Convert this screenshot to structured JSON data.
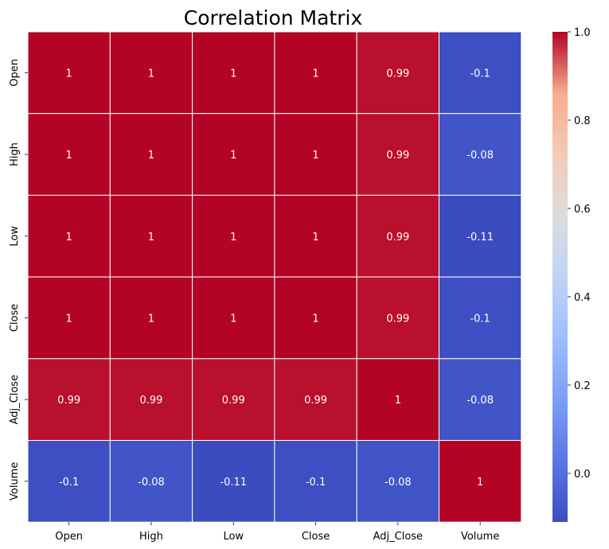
{
  "chart_data": {
    "type": "heatmap",
    "title": "Correlation Matrix",
    "xlabel": "",
    "ylabel": "",
    "x_categories": [
      "Open",
      "High",
      "Low",
      "Close",
      "Adj_Close",
      "Volume"
    ],
    "y_categories": [
      "Open",
      "High",
      "Low",
      "Close",
      "Adj_Close",
      "Volume"
    ],
    "values": [
      [
        1,
        1,
        1,
        1,
        0.99,
        -0.1
      ],
      [
        1,
        1,
        1,
        1,
        0.99,
        -0.08
      ],
      [
        1,
        1,
        1,
        1,
        0.99,
        -0.11
      ],
      [
        1,
        1,
        1,
        1,
        0.99,
        -0.1
      ],
      [
        0.99,
        0.99,
        0.99,
        0.99,
        1,
        -0.08
      ],
      [
        -0.1,
        -0.08,
        -0.11,
        -0.1,
        -0.08,
        1
      ]
    ],
    "annotations": [
      [
        "1",
        "1",
        "1",
        "1",
        "0.99",
        "-0.1"
      ],
      [
        "1",
        "1",
        "1",
        "1",
        "0.99",
        "-0.08"
      ],
      [
        "1",
        "1",
        "1",
        "1",
        "0.99",
        "-0.11"
      ],
      [
        "1",
        "1",
        "1",
        "1",
        "0.99",
        "-0.1"
      ],
      [
        "0.99",
        "0.99",
        "0.99",
        "0.99",
        "1",
        "-0.08"
      ],
      [
        "-0.1",
        "-0.08",
        "-0.11",
        "-0.1",
        "-0.08",
        "1"
      ]
    ],
    "colormap": "coolwarm",
    "color_range": [
      -0.11,
      1.0
    ],
    "colorbar_ticks": [
      "0.0",
      "0.2",
      "0.4",
      "0.6",
      "0.8",
      "1.0"
    ],
    "grid": "white cell borders",
    "legend": "colorbar right"
  }
}
